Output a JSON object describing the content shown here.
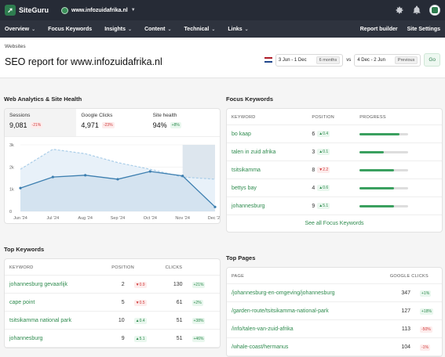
{
  "brand": {
    "name": "SiteGuru"
  },
  "site": {
    "domain": "www.infozuidafrika.nl"
  },
  "nav": {
    "items": [
      "Overview",
      "Focus Keywords",
      "Insights",
      "Content",
      "Technical",
      "Links"
    ],
    "report_builder": "Report builder",
    "site_settings": "Site Settings"
  },
  "header": {
    "breadcrumb": "Websites",
    "title": "SEO report for www.infozuidafrika.nl",
    "range1": "3 Jun - 1 Dec",
    "range1_pill": "6 months",
    "vs": "vs",
    "range2": "4 Dec - 2 Jun",
    "range2_pill": "Previous",
    "go": "Go"
  },
  "analytics": {
    "title": "Web Analytics & Site Health",
    "stats": [
      {
        "label": "Sessions",
        "value": "9,081",
        "change": "-21%",
        "tone": "red"
      },
      {
        "label": "Google Clicks",
        "value": "4,971",
        "change": "-23%",
        "tone": "red"
      },
      {
        "label": "Site health",
        "value": "94%",
        "change": "+8%",
        "tone": "green"
      }
    ]
  },
  "chart_data": {
    "type": "line",
    "categories": [
      "Jun '24",
      "Jul '24",
      "Aug '24",
      "Sep '24",
      "Oct '24",
      "Nov '24",
      "Dec '24"
    ],
    "ylabels": [
      "3k",
      "2k",
      "1k",
      "0"
    ],
    "ylim": [
      0,
      3000
    ],
    "series": [
      {
        "values": [
          1050,
          1550,
          1630,
          1450,
          1800,
          1600,
          200
        ]
      },
      {
        "values": [
          1900,
          2800,
          2600,
          2200,
          1900,
          1550,
          1450
        ]
      }
    ]
  },
  "focus": {
    "title": "Focus Keywords",
    "headers": [
      "KEYWORD",
      "POSITION",
      "PROGRESS"
    ],
    "rows": [
      {
        "kw": "bo kaap",
        "pos": "6",
        "chg": "▲0.4",
        "tone": "green",
        "progress": 0.82
      },
      {
        "kw": "talen in zuid afrika",
        "pos": "3",
        "chg": "▲0.1",
        "tone": "green",
        "progress": 0.5
      },
      {
        "kw": "tsitsikamma",
        "pos": "8",
        "chg": "▼2.2",
        "tone": "red",
        "progress": 0.7
      },
      {
        "kw": "bettys bay",
        "pos": "4",
        "chg": "▲0.6",
        "tone": "green",
        "progress": 0.7
      },
      {
        "kw": "johannesburg",
        "pos": "9",
        "chg": "▲5.1",
        "tone": "green",
        "progress": 0.7
      }
    ],
    "see_all": "See all Focus Keywords"
  },
  "topkw": {
    "title": "Top Keywords",
    "headers": [
      "KEYWORD",
      "POSITION",
      "CLICKS"
    ],
    "rows": [
      {
        "kw": "johannesburg gevaarlijk",
        "pos": "2",
        "pchg": "▼0.9",
        "ptone": "red",
        "clicks": "130",
        "cchg": "+21%",
        "ctone": "green"
      },
      {
        "kw": "cape point",
        "pos": "5",
        "pchg": "▼0.5",
        "ptone": "red",
        "clicks": "61",
        "cchg": "+2%",
        "ctone": "green"
      },
      {
        "kw": "tsitsikamma national park",
        "pos": "10",
        "pchg": "▲0.4",
        "ptone": "green",
        "clicks": "51",
        "cchg": "+38%",
        "ctone": "green"
      },
      {
        "kw": "johannesburg",
        "pos": "9",
        "pchg": "▲5.1",
        "ptone": "green",
        "clicks": "51",
        "cchg": "+46%",
        "ctone": "green"
      }
    ]
  },
  "toppages": {
    "title": "Top Pages",
    "headers": [
      "PAGE",
      "GOOGLE CLICKS"
    ],
    "rows": [
      {
        "page": "/johannesburg-en-omgeving/johannesburg",
        "clicks": "347",
        "chg": "+1%",
        "tone": "green"
      },
      {
        "page": "/garden-route/tsitsikamma-national-park",
        "clicks": "127",
        "chg": "+18%",
        "tone": "green"
      },
      {
        "page": "/info/talen-van-zuid-afrika",
        "clicks": "113",
        "chg": "-50%",
        "tone": "red"
      },
      {
        "page": "/whale-coast/hermanus",
        "clicks": "104",
        "chg": "-1%",
        "tone": "red"
      }
    ]
  }
}
